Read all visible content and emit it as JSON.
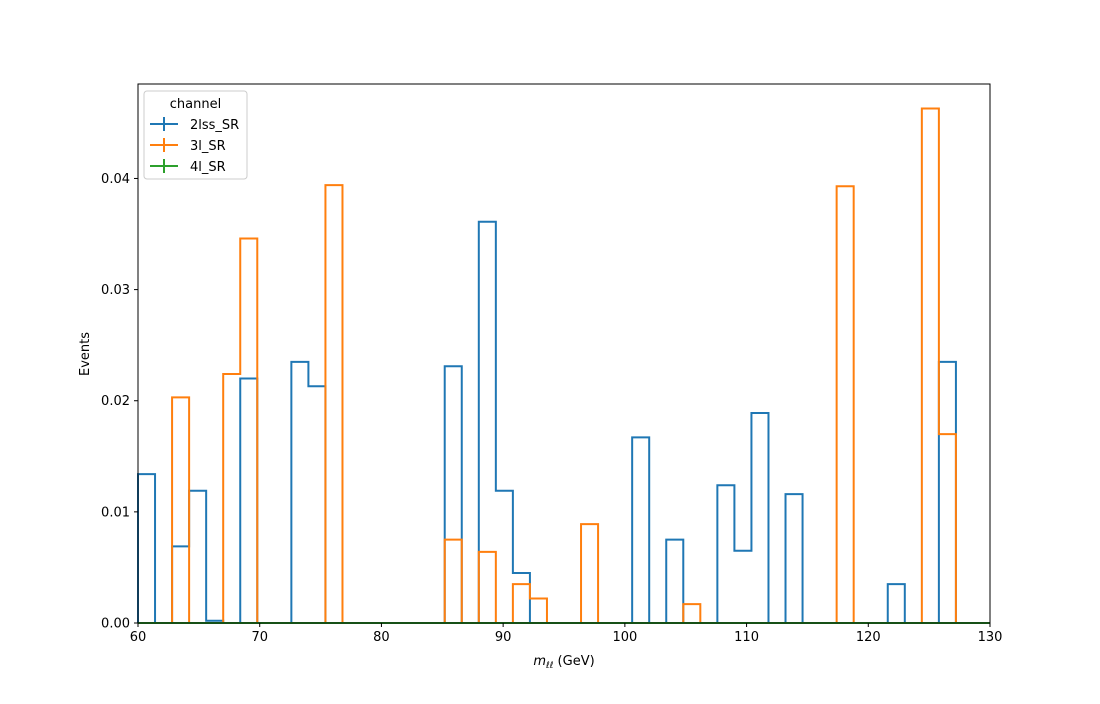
{
  "chart_data": {
    "type": "step histogram",
    "title": "",
    "xlabel_var": "m",
    "xlabel_sub": "ℓℓ",
    "xlabel_unit": " (GeV)",
    "ylabel": "Events",
    "xlim": [
      60,
      130
    ],
    "ylim": [
      0,
      0.0485
    ],
    "bin_width": 1.4,
    "x_ticks": [
      60,
      70,
      80,
      90,
      100,
      110,
      120,
      130
    ],
    "x_tick_labels": [
      "60",
      "70",
      "80",
      "90",
      "100",
      "110",
      "120",
      "130"
    ],
    "y_ticks": [
      0.0,
      0.01,
      0.02,
      0.03,
      0.04
    ],
    "y_tick_labels": [
      "0.00",
      "0.01",
      "0.02",
      "0.03",
      "0.04"
    ],
    "legend": {
      "title": "channel",
      "placement": "top-left"
    },
    "bin_edges": [
      60.0,
      61.4,
      62.8,
      64.2,
      65.6,
      67.0,
      68.4,
      69.8,
      71.2,
      72.6,
      74.0,
      75.4,
      76.8,
      78.2,
      79.6,
      81.0,
      82.4,
      83.8,
      85.2,
      86.6,
      88.0,
      89.4,
      90.8,
      92.2,
      93.6,
      95.0,
      96.4,
      97.8,
      99.2,
      100.6,
      102.0,
      103.4,
      104.8,
      106.2,
      107.6,
      109.0,
      110.4,
      111.8,
      113.2,
      114.6,
      116.0,
      117.4,
      118.8,
      120.2,
      121.6,
      123.0,
      124.4,
      125.8,
      127.2,
      128.6,
      130.0
    ],
    "series": [
      {
        "name": "2lss_SR",
        "color": "#1f77b4",
        "values": [
          0.0134,
          0.0,
          0.0069,
          0.0119,
          0.0002,
          0.0,
          0.022,
          0.0,
          0.0,
          0.0235,
          0.0213,
          0.0,
          0.0,
          0.0,
          0.0,
          0.0,
          0.0,
          0.0,
          0.0231,
          0.0,
          0.0361,
          0.0119,
          0.0045,
          0.0,
          0.0,
          0.0,
          0.0,
          0.0,
          0.0,
          0.0167,
          0.0,
          0.0075,
          0.0,
          0.0,
          0.0124,
          0.0065,
          0.0189,
          0.0,
          0.0116,
          0.0,
          0.0,
          0.0,
          0.0,
          0.0,
          0.0035,
          0.0,
          0.0,
          0.0235,
          0.0,
          0.0
        ]
      },
      {
        "name": "3l_SR",
        "color": "#ff7f0e",
        "values": [
          0.0,
          0.0,
          0.0203,
          0.0,
          0.0,
          0.0224,
          0.0346,
          0.0,
          0.0,
          0.0,
          0.0,
          0.0394,
          0.0,
          0.0,
          0.0,
          0.0,
          0.0,
          0.0,
          0.0075,
          0.0,
          0.0064,
          0.0,
          0.0035,
          0.0022,
          0.0,
          0.0,
          0.0089,
          0.0,
          0.0,
          0.0,
          0.0,
          0.0,
          0.0017,
          0.0,
          0.0,
          0.0,
          0.0,
          0.0,
          0.0,
          0.0,
          0.0,
          0.0393,
          0.0,
          0.0,
          0.0,
          0.0,
          0.0463,
          0.017,
          0.0,
          0.0
        ]
      },
      {
        "name": "4l_SR",
        "color": "#2ca02c",
        "values": [
          0.0,
          0.0,
          0.0,
          0.0,
          0.0,
          0.0,
          0.0,
          0.0,
          0.0,
          0.0,
          0.0,
          0.0,
          0.0,
          0.0,
          0.0,
          0.0,
          0.0,
          0.0,
          0.0,
          0.0,
          0.0,
          0.0,
          0.0,
          0.0,
          0.0,
          0.0,
          0.0,
          0.0,
          0.0,
          0.0,
          0.0,
          0.0,
          0.0,
          0.0,
          0.0,
          0.0,
          0.0,
          0.0,
          0.0,
          0.0,
          0.0,
          0.0,
          0.0,
          0.0,
          0.0,
          0.0,
          0.0,
          0.0,
          0.0,
          0.0
        ]
      }
    ]
  }
}
